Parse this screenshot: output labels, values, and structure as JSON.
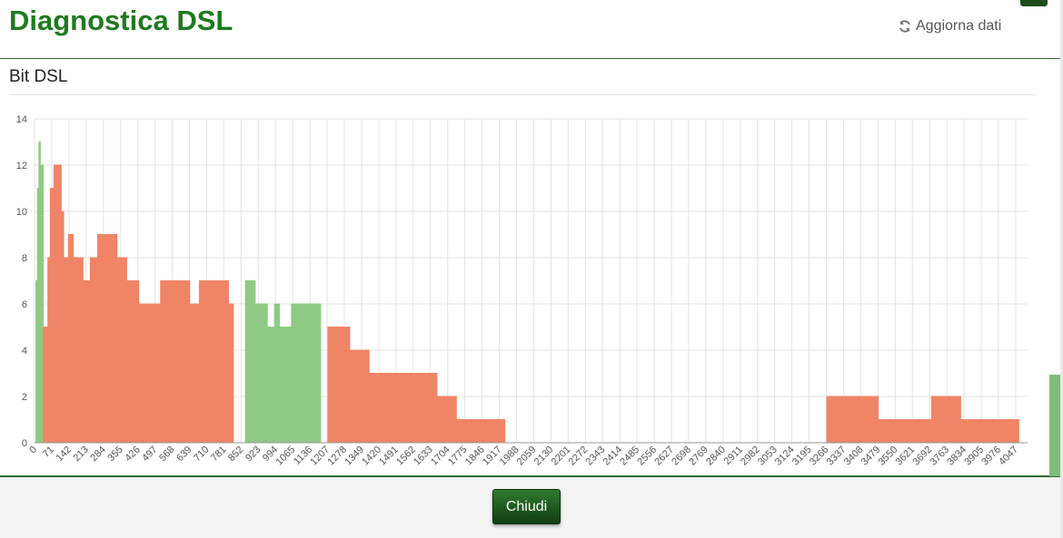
{
  "header": {
    "title": "Diagnostica DSL",
    "refresh_label": "Aggiorna dati",
    "refresh_icon": "refresh-icon"
  },
  "section": {
    "title": "Bit DSL"
  },
  "footer": {
    "close_label": "Chiudi"
  },
  "colors": {
    "upstream": "#8fca84",
    "downstream": "#f08466",
    "brand_green": "#1e7a1e"
  },
  "chart_data": {
    "type": "area",
    "title": "",
    "xlabel": "",
    "ylabel": "",
    "ylim": [
      0,
      14
    ],
    "xlim": [
      0,
      4096
    ],
    "y_ticks": [
      0,
      2,
      4,
      6,
      8,
      10,
      12,
      14
    ],
    "x_ticks": [
      0,
      71,
      142,
      213,
      284,
      355,
      426,
      497,
      568,
      639,
      710,
      781,
      852,
      923,
      994,
      1065,
      1136,
      1207,
      1278,
      1349,
      1420,
      1491,
      1562,
      1633,
      1704,
      1775,
      1846,
      1917,
      1988,
      2059,
      2130,
      2201,
      2272,
      2343,
      2414,
      2485,
      2556,
      2627,
      2698,
      2769,
      2840,
      2911,
      2982,
      3053,
      3124,
      3195,
      3266,
      3337,
      3408,
      3479,
      3550,
      3621,
      3692,
      3763,
      3834,
      3905,
      3976,
      4047
    ],
    "grid": true,
    "series": [
      {
        "color": "#8fca84",
        "segments": [
          {
            "x": [
              6,
              12,
              18,
              24,
              30,
              36
            ],
            "values": [
              7,
              11,
              13,
              12,
              12,
              5
            ]
          },
          {
            "x": [
              870,
              890,
              910,
              940,
              960,
              990,
              1010,
              1030,
              1060,
              1100,
              1140,
              1180
            ],
            "values": [
              7,
              7,
              6,
              6,
              5,
              6,
              5,
              5,
              6,
              6,
              6,
              6
            ]
          }
        ]
      },
      {
        "color": "#f08466",
        "segments": [
          {
            "x": [
              36,
              55,
              65,
              80,
              95,
              110,
              120,
              140,
              160,
              180,
              200,
              230,
              260,
              300,
              340,
              380,
              430,
              480,
              520,
              560,
              600,
              640,
              680,
              720,
              760,
              800,
              820
            ],
            "values": [
              5,
              8,
              11,
              12,
              12,
              10,
              8,
              9,
              8,
              8,
              7,
              8,
              9,
              9,
              8,
              7,
              6,
              6,
              7,
              7,
              7,
              6,
              7,
              7,
              7,
              6,
              5
            ]
          },
          {
            "x": [
              1210,
              1260,
              1300,
              1340,
              1380,
              1430,
              1480,
              1530,
              1560,
              1600,
              1640,
              1660,
              1700,
              1740,
              1800,
              1860,
              1910,
              1930,
              1940
            ],
            "values": [
              5,
              5,
              4,
              4,
              3,
              3,
              3,
              3,
              3,
              3,
              3,
              2,
              2,
              1,
              1,
              1,
              1,
              1,
              1
            ]
          },
          {
            "x": [
              3268,
              3300,
              3340,
              3380,
              3420,
              3480,
              3520,
              3600,
              3700,
              3760,
              3820,
              3900,
              3980,
              4040,
              4060
            ],
            "values": [
              2,
              2,
              2,
              2,
              2,
              1,
              1,
              1,
              2,
              2,
              1,
              1,
              1,
              1,
              1
            ]
          }
        ]
      }
    ]
  }
}
